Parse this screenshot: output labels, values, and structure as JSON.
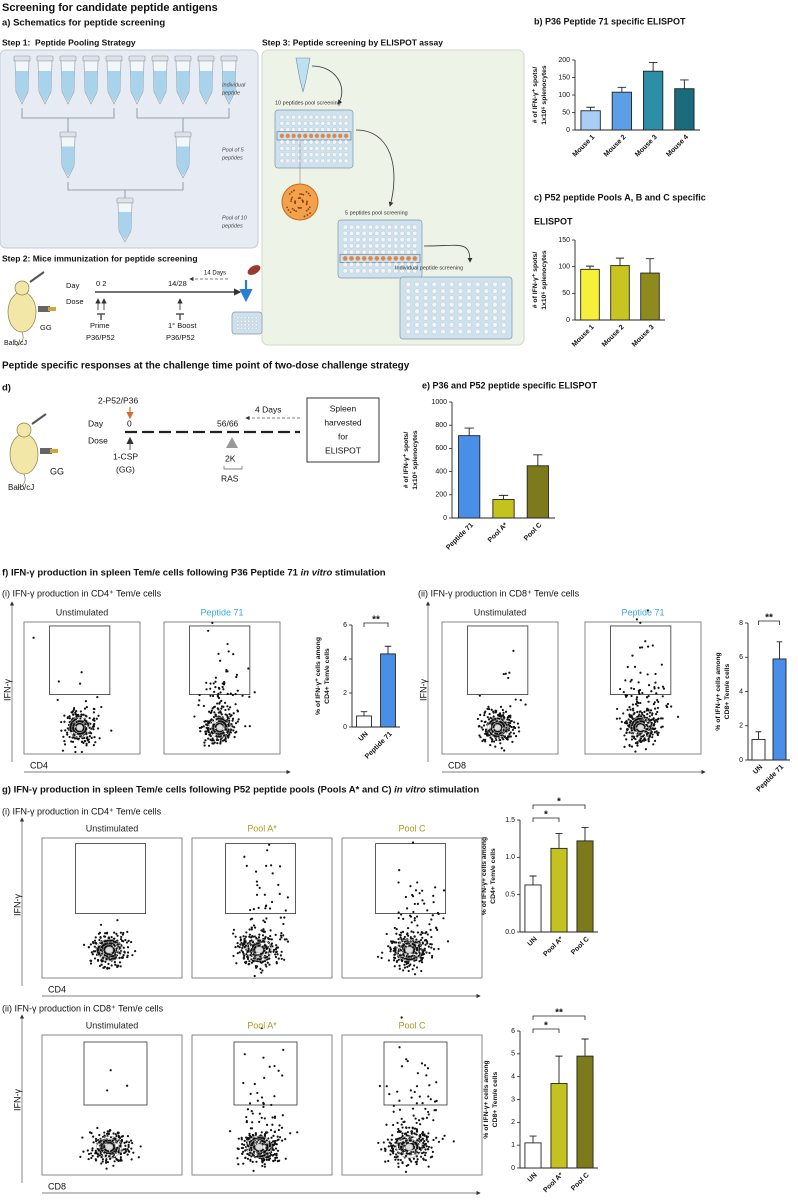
{
  "title": "Screening for candidate peptide antigens",
  "panel_a": {
    "heading": "a) Schematics for peptide screening",
    "step1": "Step 1:  Peptide Pooling Strategy",
    "step2": "Step 2: Mice immunization for peptide screening",
    "step3": "Step 3: Peptide screening by ELISPOT assay",
    "pool_labels": [
      [
        "Individual",
        "peptide"
      ],
      [
        "Pool of 5",
        "peptides"
      ],
      [
        "Pool of 10",
        "peptides"
      ]
    ],
    "assay_labels": [
      "10 peptides pool screening",
      "5 peptides pool screening",
      "Individual peptide screening"
    ],
    "strain": "Balb/cJ",
    "adjuvant": "GG",
    "timeline": {
      "day": "Day",
      "dose": "Dose",
      "day_marks": [
        "0 2",
        "14/28"
      ],
      "interval": "14 Days",
      "prime": [
        "Prime",
        "P36/P52"
      ],
      "boost": [
        "1° Boost",
        "P36/P52"
      ]
    }
  },
  "section2_title": "Peptide specific responses at the challenge time point of two-dose challenge strategy",
  "panel_d": {
    "label": "d)",
    "strain": "Balb/cJ",
    "adjuvant": "GG",
    "challenge": "2-P52/P36",
    "day": "Day",
    "dose": "Dose",
    "day_marks": [
      "0",
      "56/66"
    ],
    "prime": [
      "1-CSP",
      "(GG)"
    ],
    "interval": "4 Days",
    "boost": [
      "2K",
      "RAS"
    ],
    "endpoint": [
      "Spleen",
      "harvested",
      "for",
      "ELISPOT"
    ]
  },
  "panel_f": {
    "heading": [
      "f) IFN-γ production in spleen Tem/e cells following P36 Peptide 71 ",
      "in vitro",
      " stimulation"
    ],
    "subpanels": [
      {
        "title": "(i) IFN-γ production in CD4⁺ Tem/e cells",
        "plots": [
          "Unstimulated",
          "Peptide 71"
        ],
        "plot_colors": [
          "#222222",
          "#3aa6d9"
        ],
        "x_label": "CD4",
        "y_label": "IFN-γ"
      },
      {
        "title": "(ii) IFN-γ production in CD8⁺ Tem/e cells",
        "plots": [
          "Unstimulated",
          "Peptide 71"
        ],
        "plot_colors": [
          "#222222",
          "#3aa6d9"
        ],
        "x_label": "CD8",
        "y_label": "IFN-γ"
      }
    ]
  },
  "panel_g": {
    "heading": [
      "g) IFN-γ production in spleen Tem/e cells following P52 peptide pools (Pools A* and C) ",
      "in vitro",
      " stimulation"
    ],
    "subpanels": [
      {
        "title": "(i) IFN-γ production in CD4⁺ Tem/e cells",
        "plots": [
          "Unstimulated",
          "Pool A*",
          "Pool C"
        ],
        "plot_colors": [
          "#222222",
          "#b3961c",
          "#b3961c"
        ],
        "x_label": "CD4",
        "y_label": "IFN-γ"
      },
      {
        "title": "(ii) IFN-γ production in CD8⁺ Tem/e cells",
        "plots": [
          "Unstimulated",
          "Pool A*",
          "Pool C"
        ],
        "plot_colors": [
          "#222222",
          "#b3961c",
          "#b3961c"
        ],
        "x_label": "CD8",
        "y_label": "IFN-γ"
      }
    ]
  },
  "chart_data": [
    {
      "type": "bar",
      "title": [
        "b) P36 Peptide 71 specific ELISPOT"
      ],
      "ylabel": [
        "# of IFN-γ⁺ spots/",
        "1x10⁶ splenocytes"
      ],
      "categories": [
        "Mouse 1",
        "Mouse 2",
        "Mouse 3",
        "Mouse 4"
      ],
      "values": [
        55,
        108,
        168,
        118
      ],
      "errors": [
        10,
        14,
        25,
        25
      ],
      "colors": [
        "#a9cdf5",
        "#5c9fe6",
        "#2e8ea8",
        "#1a6b7c"
      ],
      "ylim": [
        0,
        200
      ],
      "yticks": [
        0,
        50,
        100,
        150,
        200
      ]
    },
    {
      "type": "bar",
      "title": [
        "c) P52 peptide Pools A, B and C specific",
        "ELISPOT"
      ],
      "ylabel": [
        "# of IFN-γ⁺ spots/",
        "1x10⁶ splenocytes"
      ],
      "categories": [
        "Mouse 1",
        "Mouse 2",
        "Mouse 3"
      ],
      "values": [
        95,
        102,
        88
      ],
      "errors": [
        6,
        14,
        27
      ],
      "colors": [
        "#f7f03a",
        "#c9c520",
        "#8e8a1e"
      ],
      "ylim": [
        0,
        150
      ],
      "yticks": [
        0,
        50,
        100,
        150
      ]
    },
    {
      "type": "bar",
      "title": [
        "e) P36 and P52 peptide specific ELISPOT"
      ],
      "ylabel": [
        "# of IFN-γ⁺ spots/",
        "1x10⁶ splenocytes"
      ],
      "categories": [
        "Peptide 71",
        "Pool A*",
        "Pool C"
      ],
      "values": [
        710,
        160,
        450
      ],
      "errors": [
        65,
        35,
        95
      ],
      "colors": [
        "#4a8fe7",
        "#c3c21f",
        "#7d7a1b"
      ],
      "ylim": [
        0,
        1000
      ],
      "yticks": [
        0,
        200,
        400,
        600,
        800,
        1000
      ]
    },
    {
      "type": "bar",
      "ylabel": [
        "% of IFN-γ⁺ cells among",
        "CD4+ Tem/e cells"
      ],
      "categories": [
        "UN",
        "Peptide 71"
      ],
      "values": [
        0.65,
        4.3
      ],
      "errors": [
        0.25,
        0.45
      ],
      "colors": [
        "#ffffff",
        "#4a8fe7"
      ],
      "ylim": [
        0,
        6
      ],
      "yticks": [
        0,
        2,
        4,
        6
      ],
      "significance": [
        "**"
      ]
    },
    {
      "type": "bar",
      "ylabel": [
        "% of IFN-γ+ cells among",
        "CD8+ Tem/e cells"
      ],
      "categories": [
        "UN",
        "Peptide 71"
      ],
      "values": [
        1.2,
        5.9
      ],
      "errors": [
        0.45,
        1.0
      ],
      "colors": [
        "#ffffff",
        "#4a8fe7"
      ],
      "ylim": [
        0,
        8
      ],
      "yticks": [
        0,
        2,
        4,
        6,
        8
      ],
      "significance": [
        "**"
      ]
    },
    {
      "type": "bar",
      "ylabel": [
        "% of IFN-γ+ cells among",
        "CD4+ Tem/e cells"
      ],
      "categories": [
        "UN",
        "Pool A*",
        "Pool C"
      ],
      "values": [
        0.63,
        1.12,
        1.22
      ],
      "errors": [
        0.12,
        0.2,
        0.18
      ],
      "colors": [
        "#ffffff",
        "#c3c21f",
        "#7d7a1b"
      ],
      "ylim": [
        0,
        1.5
      ],
      "yticks": [
        {
          "value": 0,
          "label": "0.0"
        },
        0.5,
        {
          "value": 1,
          "label": "1.0"
        },
        1.5
      ],
      "significance": [
        "*",
        "*"
      ]
    },
    {
      "type": "bar",
      "ylabel": [
        "% of IFN-γ+ cells among",
        "CD8+ Tem/e cells"
      ],
      "categories": [
        "UN",
        "Pool A*",
        "Pool C"
      ],
      "values": [
        1.1,
        3.7,
        4.9
      ],
      "errors": [
        0.3,
        1.2,
        0.75
      ],
      "colors": [
        "#ffffff",
        "#c3c21f",
        "#7d7a1b"
      ],
      "ylim": [
        0,
        6
      ],
      "yticks": [
        0,
        1,
        2,
        3,
        4,
        5,
        6
      ],
      "significance": [
        "*",
        "**"
      ]
    }
  ]
}
